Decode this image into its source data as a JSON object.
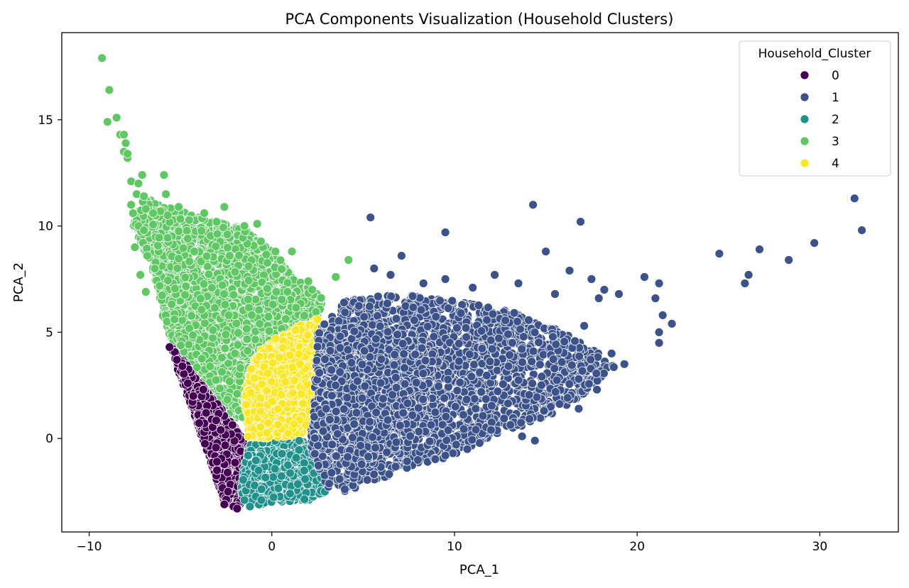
{
  "chart_data": {
    "type": "scatter",
    "title": "PCA Components Visualization (Household Clusters)",
    "xlabel": "PCA_1",
    "ylabel": "PCA_2",
    "xlim": [
      -11.5,
      34.3
    ],
    "ylim": [
      -4.4,
      19.1
    ],
    "xticks": [
      -10,
      0,
      10,
      20,
      30
    ],
    "xtick_labels": [
      "−10",
      "0",
      "10",
      "20",
      "30"
    ],
    "yticks": [
      0,
      5,
      10,
      15
    ],
    "yticks_labels": [
      "0",
      "5",
      "10",
      "15"
    ],
    "grid": false,
    "legend": {
      "title": "Household_Cluster",
      "placement": "top-right",
      "labels": [
        "0",
        "1",
        "2",
        "3",
        "4"
      ]
    },
    "series": [
      {
        "name": "0",
        "color": "#440154",
        "regions": [
          {
            "poly": [
              [
                -5.5,
                4.3
              ],
              [
                -4.8,
                3.6
              ],
              [
                -3.5,
                2.2
              ],
              [
                -2.3,
                0.9
              ],
              [
                -1.2,
                -0.4
              ],
              [
                -1.0,
                -1.5
              ],
              [
                -1.4,
                -2.7
              ],
              [
                -1.9,
                -3.3
              ],
              [
                -2.6,
                -3.0
              ],
              [
                -3.4,
                -1.0
              ],
              [
                -4.4,
                1.5
              ],
              [
                -5.3,
                3.6
              ]
            ],
            "n": 1100
          }
        ],
        "points": [
          [
            -5.6,
            4.3
          ],
          [
            -5.2,
            3.7
          ],
          [
            -4.9,
            3.4
          ],
          [
            -4.6,
            2.6
          ],
          [
            -2.1,
            -3.2
          ],
          [
            -2.6,
            -3.1
          ],
          [
            -1.9,
            -3.3
          ],
          [
            -4.3,
            2.0
          ],
          [
            -3.6,
            1.2
          ],
          [
            -2.8,
            0.4
          ],
          [
            -1.7,
            -0.6
          ],
          [
            -1.3,
            -1.2
          ],
          [
            -3.0,
            -1.5
          ],
          [
            -2.4,
            -2.5
          ]
        ]
      },
      {
        "name": "1",
        "color": "#3b528b",
        "regions": [
          {
            "poly": [
              [
                2.5,
                5.0
              ],
              [
                4.0,
                6.5
              ],
              [
                7.0,
                6.8
              ],
              [
                10.0,
                6.5
              ],
              [
                13.0,
                6.0
              ],
              [
                16.0,
                5.0
              ],
              [
                18.0,
                4.0
              ],
              [
                19.0,
                3.5
              ],
              [
                17.0,
                2.0
              ],
              [
                15.0,
                1.0
              ],
              [
                12.0,
                0.0
              ],
              [
                10.0,
                -0.8
              ],
              [
                8.0,
                -1.3
              ],
              [
                6.0,
                -1.9
              ],
              [
                4.0,
                -2.5
              ],
              [
                3.0,
                -2.3
              ],
              [
                2.0,
                -0.3
              ],
              [
                2.5,
                2.0
              ]
            ],
            "n": 2400
          },
          {
            "poly": [
              [
                2.5,
                5.0
              ],
              [
                6.0,
                5.5
              ],
              [
                9.0,
                4.0
              ],
              [
                8.0,
                0.0
              ],
              [
                4.5,
                -1.5
              ],
              [
                2.2,
                -0.2
              ]
            ],
            "n": 1200
          }
        ],
        "points": [
          [
            5.4,
            10.4
          ],
          [
            9.5,
            9.7
          ],
          [
            14.3,
            11.0
          ],
          [
            16.9,
            10.2
          ],
          [
            15.0,
            8.8
          ],
          [
            24.5,
            8.7
          ],
          [
            26.7,
            8.9
          ],
          [
            28.3,
            8.4
          ],
          [
            29.7,
            9.2
          ],
          [
            31.9,
            11.3
          ],
          [
            32.3,
            9.8
          ],
          [
            20.4,
            7.6
          ],
          [
            21.2,
            7.3
          ],
          [
            26.1,
            7.7
          ],
          [
            25.9,
            7.3
          ],
          [
            21.0,
            6.6
          ],
          [
            21.4,
            5.8
          ],
          [
            21.9,
            5.4
          ],
          [
            21.2,
            5.0
          ],
          [
            21.2,
            4.5
          ],
          [
            19.3,
            3.5
          ],
          [
            16.3,
            7.9
          ],
          [
            17.5,
            7.5
          ],
          [
            18.2,
            7.0
          ],
          [
            19.0,
            6.8
          ],
          [
            17.9,
            6.6
          ],
          [
            17.1,
            5.3
          ],
          [
            18.6,
            4.0
          ],
          [
            16.8,
            2.8
          ],
          [
            16.8,
            1.4
          ],
          [
            14.4,
            -0.1
          ],
          [
            13.7,
            0.1
          ],
          [
            12.0,
            0.4
          ],
          [
            10.7,
            -0.5
          ],
          [
            9.5,
            -0.8
          ],
          [
            7.1,
            8.6
          ],
          [
            5.6,
            8.0
          ],
          [
            6.5,
            7.7
          ],
          [
            12.2,
            7.7
          ],
          [
            8.3,
            7.3
          ],
          [
            9.5,
            7.5
          ],
          [
            11.0,
            7.1
          ],
          [
            13.5,
            7.3
          ],
          [
            15.5,
            6.8
          ],
          [
            17.8,
            2.3
          ],
          [
            14.9,
            1.3
          ]
        ]
      },
      {
        "name": "2",
        "color": "#21918c",
        "regions": [
          {
            "poly": [
              [
                -1.2,
                -0.3
              ],
              [
                0.0,
                -0.1
              ],
              [
                1.0,
                0.0
              ],
              [
                2.3,
                -0.3
              ],
              [
                3.0,
                -1.5
              ],
              [
                3.0,
                -2.5
              ],
              [
                2.0,
                -2.9
              ],
              [
                0.0,
                -3.0
              ],
              [
                -1.2,
                -3.2
              ],
              [
                -1.7,
                -2.5
              ],
              [
                -1.5,
                -1.2
              ]
            ],
            "n": 900
          }
        ],
        "points": [
          [
            -1.2,
            -3.2
          ],
          [
            -1.5,
            -2.9
          ],
          [
            2.9,
            -2.5
          ],
          [
            2.7,
            -1.4
          ],
          [
            -0.5,
            -0.2
          ],
          [
            0.6,
            0.0
          ],
          [
            1.5,
            -0.1
          ],
          [
            -1.3,
            -0.8
          ]
        ]
      },
      {
        "name": "3",
        "color": "#5ec962",
        "regions": [
          {
            "poly": [
              [
                -7.0,
                11.5
              ],
              [
                -6.0,
                11.0
              ],
              [
                -4.0,
                10.4
              ],
              [
                -2.0,
                10.0
              ],
              [
                -1.0,
                9.6
              ],
              [
                0.5,
                8.4
              ],
              [
                1.2,
                7.5
              ],
              [
                2.2,
                7.1
              ],
              [
                2.8,
                6.6
              ],
              [
                2.6,
                5.8
              ],
              [
                1.5,
                5.3
              ],
              [
                0.5,
                4.8
              ],
              [
                -0.8,
                4.0
              ],
              [
                -1.6,
                2.5
              ],
              [
                -1.8,
                0.8
              ],
              [
                -2.7,
                1.2
              ],
              [
                -3.4,
                2.0
              ],
              [
                -4.2,
                3.0
              ],
              [
                -5.1,
                4.2
              ],
              [
                -5.9,
                5.3
              ],
              [
                -6.2,
                7.0
              ],
              [
                -6.8,
                8.5
              ],
              [
                -7.6,
                10.0
              ]
            ],
            "n": 2200
          }
        ],
        "points": [
          [
            -9.3,
            17.9
          ],
          [
            -8.9,
            16.4
          ],
          [
            -9.0,
            14.9
          ],
          [
            -8.5,
            15.1
          ],
          [
            -8.3,
            14.3
          ],
          [
            -8.1,
            14.3
          ],
          [
            -8.0,
            13.9
          ],
          [
            -8.1,
            13.5
          ],
          [
            -7.9,
            13.2
          ],
          [
            -7.9,
            13.4
          ],
          [
            -7.7,
            12.1
          ],
          [
            -7.1,
            12.4
          ],
          [
            -7.3,
            12.0
          ],
          [
            -5.9,
            12.4
          ],
          [
            -7.4,
            11.5
          ],
          [
            -7.0,
            11.4
          ],
          [
            -5.8,
            11.5
          ],
          [
            -7.7,
            11.0
          ],
          [
            -6.9,
            10.8
          ],
          [
            -6.5,
            10.6
          ],
          [
            -5.1,
            10.9
          ],
          [
            -7.6,
            10.6
          ],
          [
            -7.3,
            10.0
          ],
          [
            -7.0,
            9.8
          ],
          [
            -5.7,
            10.5
          ],
          [
            -3.7,
            10.6
          ],
          [
            -2.6,
            10.9
          ],
          [
            -1.5,
            10.0
          ],
          [
            -0.8,
            10.1
          ],
          [
            1.1,
            8.8
          ],
          [
            0.2,
            8.8
          ],
          [
            4.2,
            8.4
          ],
          [
            3.5,
            7.6
          ],
          [
            2.0,
            7.4
          ],
          [
            -1.6,
            1.0
          ],
          [
            -1.9,
            2.1
          ],
          [
            -7.2,
            7.7
          ],
          [
            -7.5,
            9.0
          ],
          [
            -6.9,
            6.9
          ],
          [
            -3.1,
            0.2
          ],
          [
            -5.3,
            4.1
          ]
        ]
      },
      {
        "name": "4",
        "color": "#fde725",
        "regions": [
          {
            "poly": [
              [
                -0.8,
                4.1
              ],
              [
                0.5,
                4.8
              ],
              [
                1.5,
                5.3
              ],
              [
                2.5,
                5.6
              ],
              [
                3.0,
                4.9
              ],
              [
                2.4,
                3.0
              ],
              [
                2.3,
                1.0
              ],
              [
                2.2,
                0.2
              ],
              [
                1.0,
                0.1
              ],
              [
                0.0,
                0.0
              ],
              [
                -1.2,
                0.0
              ],
              [
                -1.5,
                1.6
              ],
              [
                -1.3,
                3.0
              ]
            ],
            "n": 800
          }
        ],
        "points": [
          [
            2.5,
            5.6
          ],
          [
            2.9,
            4.9
          ],
          [
            2.1,
            0.3
          ],
          [
            -1.3,
            0.1
          ],
          [
            -1.4,
            1.6
          ],
          [
            0.2,
            4.7
          ],
          [
            1.3,
            5.1
          ],
          [
            2.5,
            5.2
          ],
          [
            2.7,
            4.2
          ],
          [
            2.4,
            2.9
          ]
        ]
      }
    ]
  }
}
